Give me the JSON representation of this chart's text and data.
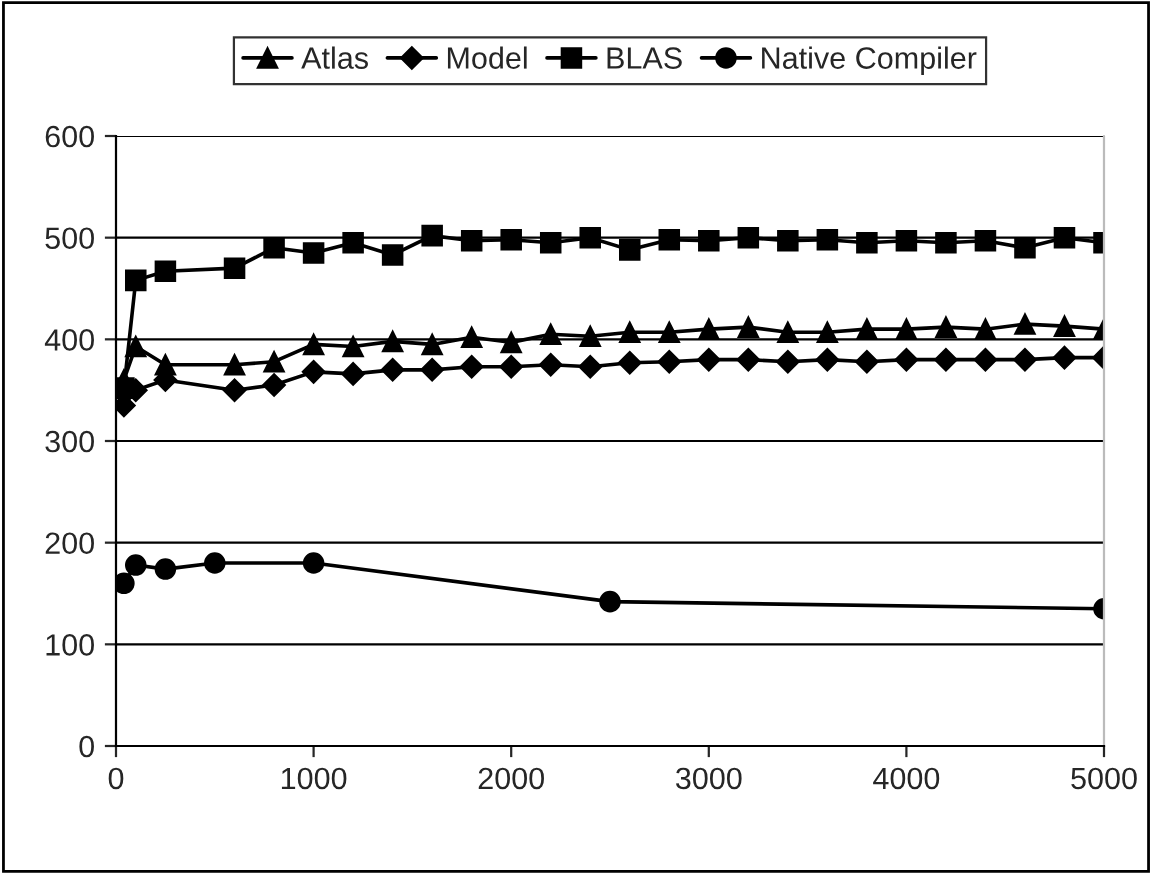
{
  "chart_data": {
    "type": "line",
    "x": [
      40,
      100,
      250,
      600,
      800,
      1000,
      1200,
      1400,
      1600,
      1800,
      2000,
      2200,
      2400,
      2600,
      2800,
      3000,
      3200,
      3400,
      3600,
      3800,
      4000,
      4200,
      4400,
      4600,
      4800,
      5000
    ],
    "series": [
      {
        "name": "Atlas",
        "color": "#000000",
        "marker": "triangle",
        "values": [
          360,
          393,
          375,
          375,
          378,
          395,
          393,
          398,
          395,
          402,
          397,
          405,
          403,
          407,
          407,
          410,
          412,
          407,
          407,
          410,
          410,
          412,
          410,
          415,
          413,
          410
        ]
      },
      {
        "name": "Model",
        "color": "#000000",
        "marker": "diamond",
        "values": [
          335,
          350,
          360,
          350,
          355,
          368,
          366,
          370,
          370,
          373,
          373,
          375,
          373,
          377,
          378,
          380,
          380,
          378,
          380,
          378,
          380,
          380,
          380,
          380,
          382,
          382
        ]
      },
      {
        "name": "BLAS",
        "color": "#000000",
        "marker": "square",
        "values": [
          352,
          458,
          467,
          470,
          490,
          485,
          495,
          483,
          502,
          497,
          498,
          495,
          500,
          488,
          498,
          497,
          500,
          497,
          498,
          495,
          497,
          495,
          497,
          490,
          500,
          495
        ]
      },
      {
        "name": "Native Compiler",
        "color": "#000000",
        "marker": "circle",
        "x": [
          40,
          100,
          250,
          500,
          1000,
          2500,
          5000
        ],
        "values": [
          160,
          178,
          174,
          180,
          180,
          142,
          135
        ]
      }
    ],
    "xlim": [
      0,
      5000
    ],
    "xticks": [
      0,
      1000,
      2000,
      3000,
      4000,
      5000
    ],
    "ylim": [
      0,
      600
    ],
    "yticks": [
      0,
      100,
      200,
      300,
      400,
      500,
      600
    ],
    "grid": "y",
    "legend": "top",
    "line_style": "solid"
  }
}
